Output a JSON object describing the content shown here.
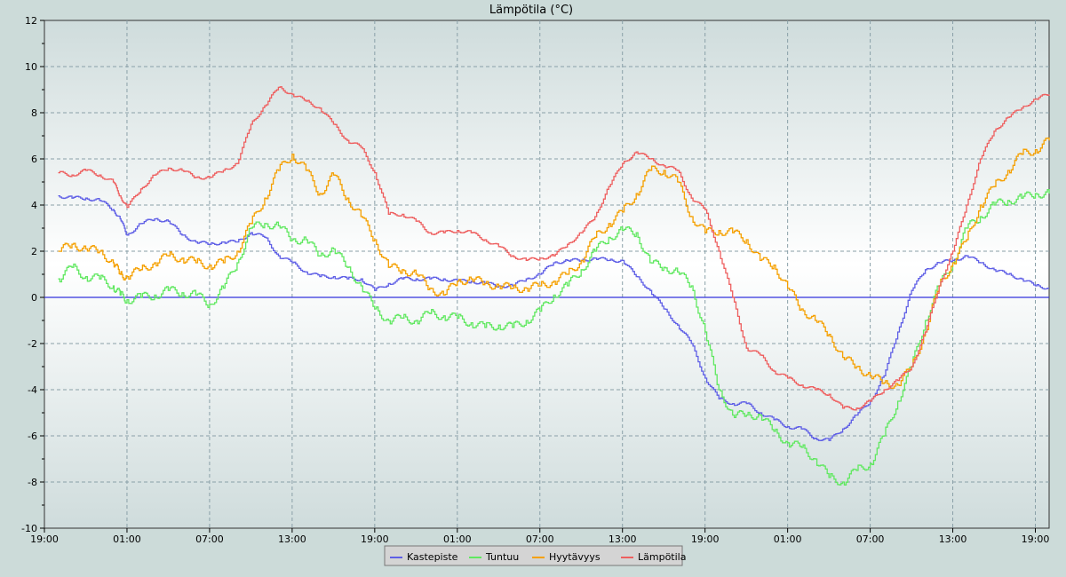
{
  "chart_data": {
    "type": "line",
    "title": "Lämpötila (°C)",
    "xlabel": "",
    "ylabel": "",
    "ylim": [
      -10,
      12
    ],
    "y_ticks": [
      "12",
      "10",
      "8",
      "6",
      "4",
      "2",
      "0",
      "-2",
      "-4",
      "-6",
      "-8",
      "-10"
    ],
    "x_tick_labels": [
      "19:00",
      "01:00",
      "07:00",
      "13:00",
      "19:00",
      "01:00",
      "07:00",
      "13:00",
      "19:00",
      "01:00",
      "07:00",
      "13:00",
      "19:00"
    ],
    "x_ticks_hours": [
      0,
      6,
      12,
      18,
      24,
      30,
      36,
      42,
      48,
      54,
      60,
      66,
      72
    ],
    "xlim_hours": [
      0,
      73.0
    ],
    "x_unit": "hours since first 19:00 tick",
    "grid": true,
    "legend_position": "bottom-center",
    "zero_line_color": "#3333dd",
    "series": [
      {
        "name": "Kastepiste",
        "color": "#5f5fe6",
        "x": [
          1,
          2,
          3,
          4,
          5,
          5.5,
          6,
          7,
          8,
          9,
          10,
          11,
          12,
          13,
          14,
          15,
          16,
          17,
          18,
          19,
          20,
          21,
          22,
          23,
          24,
          25,
          26,
          27,
          28,
          29,
          30,
          31,
          32,
          33,
          34,
          35,
          36,
          37,
          38,
          39,
          40,
          41,
          42,
          43,
          44,
          45,
          46,
          47,
          48,
          49,
          50,
          51,
          52,
          53,
          54,
          55,
          56,
          57,
          58,
          59,
          60,
          61,
          62,
          63,
          64,
          65,
          66,
          67,
          68,
          69,
          70,
          71,
          72,
          73
        ],
        "values": [
          4.4,
          4.3,
          4.3,
          4.2,
          3.8,
          3.4,
          2.7,
          3.2,
          3.4,
          3.3,
          2.7,
          2.4,
          2.3,
          2.4,
          2.4,
          2.8,
          2.6,
          1.8,
          1.5,
          1.1,
          0.9,
          0.9,
          0.8,
          0.8,
          0.3,
          0.6,
          0.8,
          0.8,
          0.8,
          0.8,
          0.7,
          0.7,
          0.6,
          0.5,
          0.5,
          0.8,
          1.0,
          1.5,
          1.6,
          1.6,
          1.7,
          1.6,
          1.6,
          0.9,
          0.3,
          -0.5,
          -1.2,
          -2.0,
          -3.5,
          -4.4,
          -4.6,
          -4.6,
          -5.0,
          -5.3,
          -5.6,
          -5.7,
          -6.1,
          -6.2,
          -5.7,
          -5.1,
          -4.5,
          -3.4,
          -1.5,
          0.3,
          1.2,
          1.5,
          1.6,
          1.8,
          1.5,
          1.2,
          1.0,
          0.8,
          0.5,
          0.4
        ]
      },
      {
        "name": "Tuntuu",
        "color": "#60e860",
        "x": [
          1,
          2,
          3,
          4,
          5,
          5.5,
          6,
          7,
          8,
          9,
          10,
          11,
          12,
          13,
          14,
          15,
          16,
          17,
          18,
          19,
          20,
          21,
          22,
          23,
          24,
          25,
          26,
          27,
          28,
          29,
          30,
          31,
          32,
          33,
          34,
          35,
          36,
          37,
          38,
          39,
          40,
          41,
          42,
          43,
          44,
          45,
          46,
          47,
          48,
          49,
          50,
          51,
          52,
          53,
          54,
          55,
          56,
          57,
          58,
          59,
          60,
          61,
          62,
          63,
          64,
          65,
          66,
          67,
          68,
          69,
          70,
          71,
          72,
          73
        ],
        "values": [
          0.8,
          1.3,
          0.9,
          0.8,
          0.5,
          0.1,
          -0.1,
          0.0,
          0.1,
          0.3,
          0.2,
          0.1,
          -0.3,
          0.4,
          1.5,
          3.0,
          3.2,
          3.1,
          2.5,
          2.5,
          1.8,
          2.1,
          1.3,
          0.5,
          -0.5,
          -1.0,
          -0.9,
          -1.0,
          -0.7,
          -0.8,
          -0.9,
          -1.1,
          -1.3,
          -1.2,
          -1.3,
          -1.0,
          -0.6,
          0.1,
          0.5,
          1.2,
          2.0,
          2.6,
          2.9,
          2.8,
          1.5,
          1.3,
          1.1,
          0.5,
          -1.5,
          -4.0,
          -5.1,
          -5.1,
          -5.1,
          -5.8,
          -6.3,
          -6.5,
          -7.0,
          -7.8,
          -8.0,
          -7.5,
          -7.2,
          -6.0,
          -4.5,
          -3.0,
          -1.0,
          0.5,
          1.5,
          3.0,
          3.5,
          4.0,
          4.2,
          4.3,
          4.5,
          4.5
        ]
      },
      {
        "name": "Hyytävyys",
        "color": "#f5a000",
        "x": [
          1,
          2,
          3,
          4,
          5,
          5.5,
          6,
          7,
          8,
          9,
          10,
          11,
          12,
          13,
          14,
          15,
          16,
          17,
          18,
          19,
          20,
          21,
          22,
          23,
          24,
          25,
          26,
          27,
          28,
          29,
          30,
          31,
          32,
          33,
          34,
          35,
          36,
          37,
          38,
          39,
          40,
          41,
          42,
          43,
          44,
          45,
          46,
          47,
          48,
          49,
          50,
          51,
          52,
          53,
          54,
          55,
          56,
          57,
          58,
          59,
          60,
          61,
          62,
          63,
          64,
          65,
          66,
          67,
          68,
          69,
          70,
          71,
          72,
          73
        ],
        "values": [
          2.0,
          2.3,
          2.1,
          2.0,
          1.5,
          1.0,
          0.9,
          1.2,
          1.5,
          1.8,
          1.7,
          1.5,
          1.4,
          1.5,
          2.0,
          3.2,
          4.3,
          5.5,
          6.2,
          5.5,
          4.5,
          5.3,
          4.3,
          3.5,
          2.5,
          1.3,
          1.2,
          1.0,
          0.4,
          0.1,
          0.7,
          0.8,
          0.6,
          0.5,
          0.4,
          0.4,
          0.5,
          0.7,
          1.0,
          1.6,
          2.6,
          3.2,
          3.7,
          4.5,
          5.5,
          5.5,
          5.0,
          3.5,
          2.8,
          2.9,
          2.8,
          2.5,
          1.6,
          1.4,
          0.4,
          -0.5,
          -1.0,
          -1.6,
          -2.6,
          -3.0,
          -3.4,
          -3.7,
          -3.8,
          -3.0,
          -1.5,
          0.5,
          1.5,
          2.5,
          4.0,
          4.8,
          5.5,
          6.2,
          6.4,
          6.8
        ]
      },
      {
        "name": "Lämpötila",
        "color": "#ee5f5f",
        "x": [
          1,
          2,
          3,
          4,
          5,
          5.5,
          6,
          7,
          8,
          9,
          10,
          11,
          12,
          13,
          14,
          15,
          16,
          17,
          18,
          19,
          20,
          21,
          22,
          23,
          24,
          25,
          26,
          27,
          28,
          29,
          30,
          31,
          32,
          33,
          34,
          35,
          36,
          37,
          38,
          39,
          40,
          41,
          42,
          43,
          44,
          45,
          46,
          47,
          48,
          49,
          50,
          51,
          52,
          53,
          54,
          55,
          56,
          57,
          58,
          59,
          60,
          61,
          62,
          63,
          64,
          65,
          66,
          67,
          68,
          69,
          70,
          71,
          72,
          73
        ],
        "values": [
          5.4,
          5.3,
          5.5,
          5.3,
          5.0,
          4.4,
          3.9,
          4.7,
          5.3,
          5.6,
          5.5,
          5.2,
          5.2,
          5.5,
          5.8,
          7.5,
          8.3,
          9.1,
          8.8,
          8.5,
          8.2,
          7.5,
          6.8,
          6.5,
          5.4,
          3.6,
          3.6,
          3.3,
          2.8,
          2.8,
          2.9,
          2.8,
          2.5,
          2.2,
          1.8,
          1.6,
          1.7,
          1.8,
          2.3,
          2.8,
          3.5,
          4.8,
          5.8,
          6.3,
          6.0,
          5.7,
          5.5,
          4.3,
          3.8,
          2.0,
          0.0,
          -2.2,
          -2.5,
          -3.2,
          -3.5,
          -3.8,
          -4.0,
          -4.2,
          -4.8,
          -4.8,
          -4.5,
          -4.0,
          -3.6,
          -3.0,
          -1.5,
          0.5,
          2.0,
          4.0,
          6.0,
          7.2,
          7.8,
          8.2,
          8.6,
          8.8
        ]
      }
    ]
  }
}
